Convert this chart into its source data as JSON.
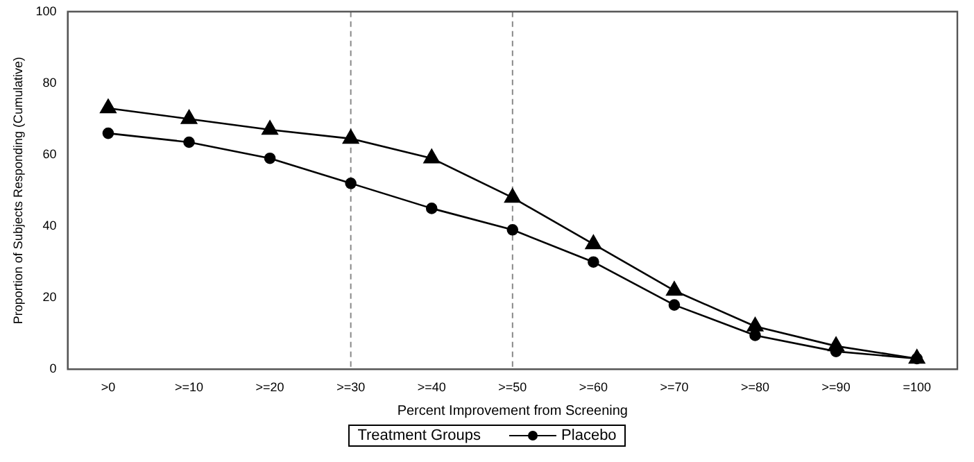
{
  "chart_data": {
    "type": "line",
    "xlabel": "Percent Improvement from Screening",
    "ylabel": "Proportion of Subjects Responding (Cumulative)",
    "legend_title": "Treatment Groups",
    "legend": "bottom",
    "grid": false,
    "categories": [
      ">0",
      ">=10",
      ">=20",
      ">=30",
      ">=40",
      ">=50",
      ">=60",
      ">=70",
      ">=80",
      ">=90",
      "=100"
    ],
    "ylim": [
      0,
      100
    ],
    "yticks": [
      0,
      20,
      40,
      60,
      80,
      100
    ],
    "series": [
      {
        "name": "Placebo",
        "color": "#000000",
        "marker": "circle",
        "values": [
          66,
          63.5,
          59,
          52,
          45,
          39,
          30,
          18,
          9.5,
          5,
          3
        ]
      },
      {
        "color": "#000000",
        "marker": "triangle",
        "values": [
          73,
          70,
          67,
          64.5,
          59,
          48,
          35,
          22,
          12,
          6.5,
          3
        ]
      }
    ],
    "ref_lines": [
      {
        "axis": "x",
        "value": ">=30",
        "line_style": "dashed",
        "color": "#888888"
      },
      {
        "axis": "x",
        "value": ">=50",
        "line_style": "dashed",
        "color": "#888888"
      }
    ]
  }
}
